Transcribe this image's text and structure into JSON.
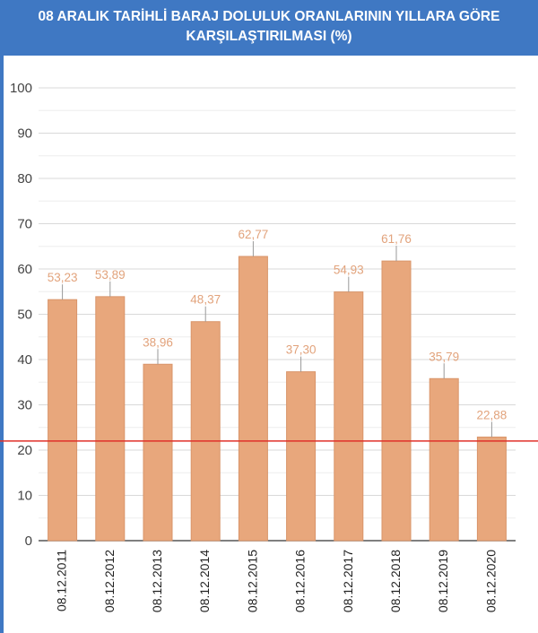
{
  "chart_data": {
    "type": "bar",
    "title_lines": [
      "08 ARALIK TARİHLİ BARAJ DOLULUK ORANLARININ YILLARA GÖRE",
      "KARŞILAŞTIRILMASI (%)"
    ],
    "categories": [
      "08.12.2011",
      "08.12.2012",
      "08.12.2013",
      "08.12.2014",
      "08.12.2015",
      "08.12.2016",
      "08.12.2017",
      "08.12.2018",
      "08.12.2019",
      "08.12.2020"
    ],
    "values": [
      53.23,
      53.89,
      38.96,
      48.37,
      62.77,
      37.3,
      54.93,
      61.76,
      35.79,
      22.88
    ],
    "data_labels": [
      "53,23",
      "53,89",
      "38,96",
      "48,37",
      "62,77",
      "37,30",
      "54,93",
      "61,76",
      "35,79",
      "22,88"
    ],
    "ylim": [
      0,
      100
    ],
    "yticks": [
      0,
      10,
      20,
      30,
      40,
      50,
      60,
      70,
      80,
      90,
      100
    ],
    "reference_line": 22,
    "grid": true,
    "colors": {
      "bar": "#e8a77c",
      "bar_border": "#d9956a",
      "label": "#e2a37c",
      "reference_line": "#e0302a",
      "title_bg": "#3f78c3",
      "grid": "#d9d9d9",
      "minor_grid": "#eeeeee"
    }
  }
}
